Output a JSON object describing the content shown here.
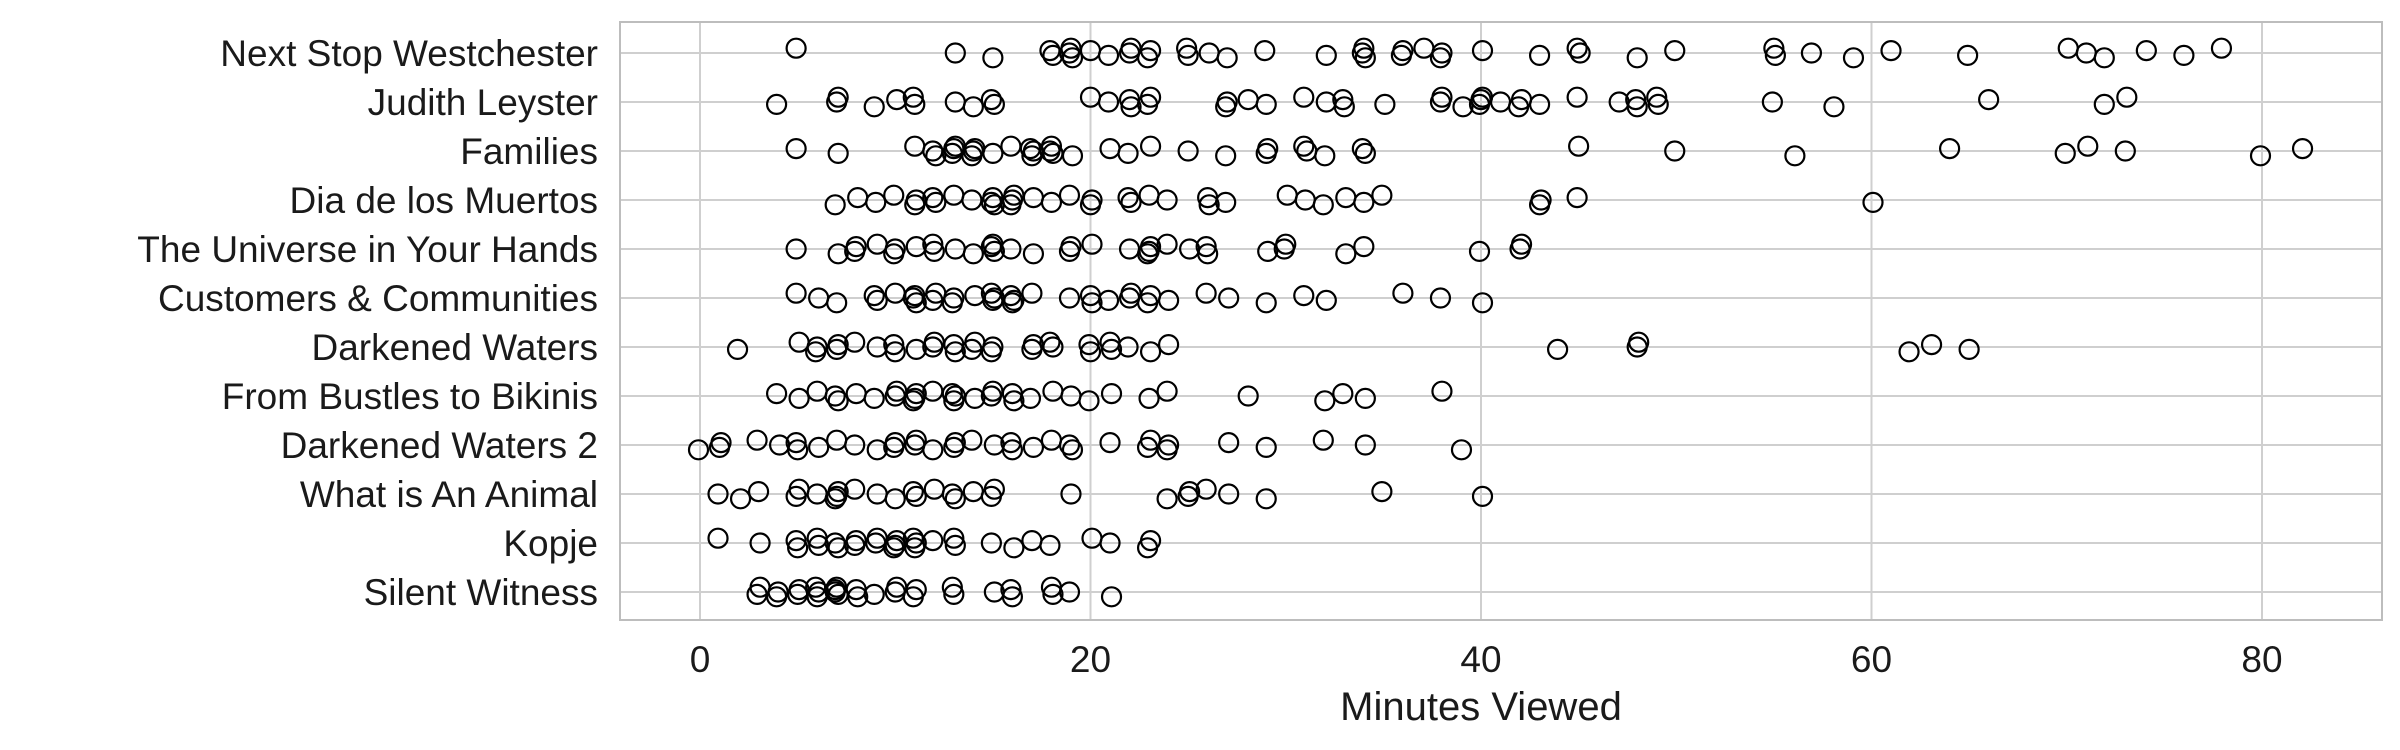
{
  "chart_data": {
    "type": "scatter",
    "title": "",
    "xlabel": "Minutes Viewed",
    "ylabel": "",
    "xlim": [
      -4,
      86
    ],
    "xticks": [
      0,
      20,
      40,
      60,
      80
    ],
    "grid": true,
    "categories": [
      "Next Stop Westchester",
      "Judith Leyster",
      "Families",
      "Dia de los Muertos",
      "The Universe in Your Hands",
      "Customers & Communities",
      "Darkened Waters",
      "From Bustles to Bikinis",
      "Darkened Waters 2",
      "What is An Animal",
      "Kopje",
      "Silent Witness"
    ],
    "series": [
      {
        "category": "Next Stop Westchester",
        "values": [
          5,
          13,
          15,
          18,
          18,
          19,
          19,
          19,
          20,
          21,
          22,
          22,
          23,
          23,
          25,
          25,
          26,
          27,
          29,
          32,
          34,
          34,
          34,
          36,
          36,
          37,
          38,
          38,
          40,
          43,
          45,
          45,
          48,
          50,
          55,
          55,
          57,
          59,
          61,
          65,
          70,
          71,
          72,
          74,
          76,
          78
        ]
      },
      {
        "category": "Judith Leyster",
        "values": [
          4,
          7,
          7,
          9,
          10,
          11,
          11,
          13,
          14,
          15,
          15,
          20,
          21,
          22,
          22,
          23,
          23,
          27,
          27,
          28,
          29,
          31,
          32,
          33,
          33,
          35,
          38,
          38,
          39,
          40,
          40,
          40,
          41,
          42,
          42,
          43,
          45,
          47,
          48,
          48,
          49,
          49,
          55,
          58,
          66,
          72,
          73
        ]
      },
      {
        "category": "Families",
        "values": [
          5,
          7,
          11,
          12,
          12,
          13,
          13,
          13,
          14,
          14,
          14,
          15,
          16,
          17,
          17,
          17,
          18,
          18,
          18,
          19,
          21,
          22,
          23,
          25,
          27,
          29,
          29,
          31,
          31,
          32,
          34,
          34,
          45,
          50,
          56,
          64,
          70,
          71,
          73,
          80,
          82
        ]
      },
      {
        "category": "Dia de los Muertos",
        "values": [
          7,
          8,
          9,
          10,
          11,
          11,
          12,
          12,
          13,
          14,
          15,
          15,
          15,
          16,
          16,
          16,
          17,
          18,
          19,
          20,
          20,
          22,
          22,
          23,
          24,
          26,
          26,
          27,
          30,
          31,
          32,
          33,
          34,
          35,
          43,
          43,
          45,
          60
        ]
      },
      {
        "category": "The Universe in Your Hands",
        "values": [
          5,
          7,
          8,
          8,
          9,
          10,
          10,
          11,
          12,
          12,
          13,
          14,
          15,
          15,
          15,
          16,
          17,
          19,
          19,
          20,
          22,
          23,
          23,
          23,
          24,
          25,
          26,
          26,
          29,
          30,
          30,
          33,
          34,
          40,
          42,
          42
        ]
      },
      {
        "category": "Customers & Communities",
        "values": [
          5,
          6,
          7,
          9,
          9,
          10,
          11,
          11,
          11,
          12,
          12,
          13,
          13,
          14,
          15,
          15,
          15,
          16,
          16,
          16,
          17,
          19,
          20,
          20,
          21,
          22,
          22,
          23,
          23,
          24,
          26,
          27,
          29,
          31,
          32,
          36,
          38,
          40
        ]
      },
      {
        "category": "Darkened Waters",
        "values": [
          2,
          5,
          6,
          6,
          7,
          7,
          8,
          9,
          10,
          10,
          11,
          12,
          12,
          13,
          13,
          14,
          14,
          15,
          15,
          17,
          17,
          18,
          18,
          20,
          20,
          21,
          21,
          22,
          23,
          24,
          44,
          48,
          48,
          62,
          63,
          65
        ]
      },
      {
        "category": "From Bustles to Bikinis",
        "values": [
          4,
          5,
          6,
          7,
          7,
          8,
          9,
          10,
          10,
          11,
          11,
          11,
          12,
          13,
          13,
          13,
          14,
          15,
          15,
          16,
          16,
          17,
          18,
          19,
          20,
          21,
          23,
          24,
          28,
          32,
          33,
          34,
          38
        ]
      },
      {
        "category": "Darkened Waters 2",
        "values": [
          0,
          1,
          1,
          3,
          4,
          5,
          5,
          6,
          7,
          8,
          9,
          10,
          10,
          11,
          11,
          12,
          13,
          13,
          14,
          15,
          16,
          16,
          17,
          18,
          19,
          19,
          21,
          23,
          23,
          24,
          24,
          27,
          29,
          32,
          34,
          39
        ]
      },
      {
        "category": "What is An Animal",
        "values": [
          1,
          2,
          3,
          5,
          5,
          6,
          7,
          7,
          7,
          8,
          9,
          10,
          11,
          11,
          12,
          13,
          13,
          14,
          15,
          15,
          19,
          24,
          25,
          25,
          26,
          27,
          29,
          35,
          40
        ]
      },
      {
        "category": "Kopje",
        "values": [
          1,
          3,
          5,
          5,
          6,
          6,
          7,
          7,
          8,
          8,
          9,
          9,
          10,
          10,
          10,
          11,
          11,
          11,
          12,
          13,
          13,
          15,
          16,
          17,
          18,
          20,
          21,
          23,
          23
        ]
      },
      {
        "category": "Silent Witness",
        "values": [
          3,
          3,
          4,
          4,
          5,
          5,
          6,
          6,
          6,
          7,
          7,
          7,
          7,
          8,
          8,
          9,
          10,
          10,
          11,
          11,
          13,
          13,
          15,
          16,
          16,
          18,
          18,
          19,
          21
        ]
      }
    ]
  }
}
